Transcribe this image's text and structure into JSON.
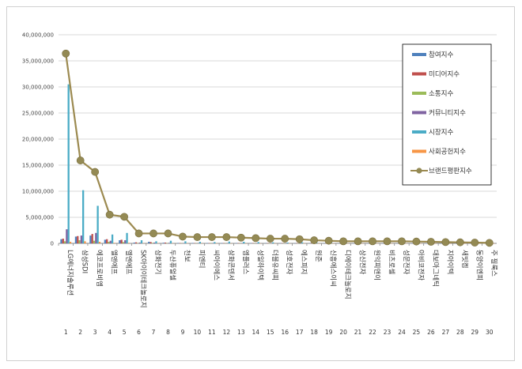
{
  "chart_data": {
    "type": "bar",
    "title": "",
    "xlabel": "",
    "ylabel": "",
    "ylim": [
      0,
      40000000
    ],
    "yticks": [
      "0",
      "5,000,000",
      "10,000,000",
      "15,000,000",
      "20,000,000",
      "25,000,000",
      "30,000,000",
      "35,000,000",
      "40,000,000"
    ],
    "grid": true,
    "legend_position": "top-right",
    "categories": [
      "LG에너지솔루션",
      "삼성SDI",
      "에코프로비엠",
      "엘앤에프",
      "엘엔에프",
      "SK아이이테크놀로지",
      "삼화전기",
      "두산퓨얼셀",
      "천보",
      "피엔티",
      "씨아이에스",
      "삼화콘덴서",
      "엠플러스",
      "성일하이텍",
      "더블유씨피",
      "성호전자",
      "에스피지",
      "원준",
      "신흥에스이씨",
      "디에이테크놀로지",
      "상신전자",
      "원익피앤이",
      "비츠로셀",
      "성문전자",
      "아비코전자",
      "대보마그네틱",
      "지아이텍",
      "새빗켐",
      "동양이엔피",
      "주 필룩스"
    ],
    "numbers": [
      "1",
      "2",
      "3",
      "4",
      "5",
      "6",
      "7",
      "8",
      "9",
      "10",
      "11",
      "12",
      "13",
      "14",
      "15",
      "16",
      "17",
      "18",
      "19",
      "20",
      "21",
      "22",
      "23",
      "24",
      "25",
      "26",
      "27",
      "28",
      "29",
      "30"
    ],
    "series": [
      {
        "name": "참여지수",
        "color": "#4f81bd",
        "values": [
          800000,
          1300000,
          1500000,
          700000,
          600000,
          150000,
          300000,
          120000,
          80000,
          80000,
          70000,
          70000,
          60000,
          60000,
          50000,
          50000,
          40000,
          40000,
          40000,
          30000,
          30000,
          30000,
          30000,
          30000,
          30000,
          30000,
          20000,
          20000,
          20000,
          20000
        ]
      },
      {
        "name": "미디어지수",
        "color": "#c0504d",
        "values": [
          900000,
          1400000,
          1800000,
          800000,
          700000,
          200000,
          250000,
          150000,
          60000,
          50000,
          50000,
          50000,
          50000,
          50000,
          40000,
          40000,
          40000,
          30000,
          30000,
          30000,
          30000,
          30000,
          20000,
          20000,
          20000,
          20000,
          20000,
          20000,
          20000,
          20000
        ]
      },
      {
        "name": "소통지수",
        "color": "#9bbb59",
        "values": [
          400000,
          600000,
          500000,
          300000,
          250000,
          80000,
          100000,
          60000,
          30000,
          30000,
          30000,
          30000,
          20000,
          20000,
          20000,
          20000,
          20000,
          20000,
          20000,
          10000,
          10000,
          10000,
          10000,
          10000,
          10000,
          10000,
          10000,
          10000,
          10000,
          10000
        ]
      },
      {
        "name": "커뮤니티지수",
        "color": "#8064a2",
        "values": [
          2700000,
          1500000,
          2000000,
          500000,
          600000,
          150000,
          150000,
          100000,
          50000,
          50000,
          40000,
          40000,
          40000,
          30000,
          30000,
          30000,
          30000,
          20000,
          20000,
          20000,
          20000,
          20000,
          20000,
          20000,
          20000,
          20000,
          20000,
          10000,
          10000,
          10000
        ]
      },
      {
        "name": "시장지수",
        "color": "#4bacc6",
        "values": [
          30500000,
          10200000,
          7200000,
          1700000,
          2000000,
          600000,
          400000,
          500000,
          400000,
          300000,
          250000,
          350000,
          300000,
          250000,
          200000,
          150000,
          200000,
          100000,
          100000,
          150000,
          200000,
          100000,
          150000,
          100000,
          150000,
          100000,
          100000,
          80000,
          60000,
          50000
        ]
      },
      {
        "name": "사회공헌지수",
        "color": "#f79646",
        "values": [
          300000,
          400000,
          300000,
          100000,
          100000,
          50000,
          50000,
          30000,
          20000,
          20000,
          20000,
          20000,
          20000,
          10000,
          10000,
          10000,
          10000,
          10000,
          10000,
          10000,
          10000,
          10000,
          10000,
          10000,
          10000,
          10000,
          10000,
          10000,
          10000,
          10000
        ]
      }
    ],
    "line_series": {
      "name": "브랜드평판지수",
      "color": "#9c8a50",
      "marker_color": "#948a54",
      "values": [
        36400000,
        15900000,
        13700000,
        5500000,
        5100000,
        1900000,
        1900000,
        1900000,
        1300000,
        1200000,
        1200000,
        1200000,
        1100000,
        1000000,
        900000,
        900000,
        800000,
        600000,
        500000,
        400000,
        400000,
        400000,
        400000,
        400000,
        350000,
        300000,
        250000,
        200000,
        150000,
        100000
      ]
    }
  }
}
